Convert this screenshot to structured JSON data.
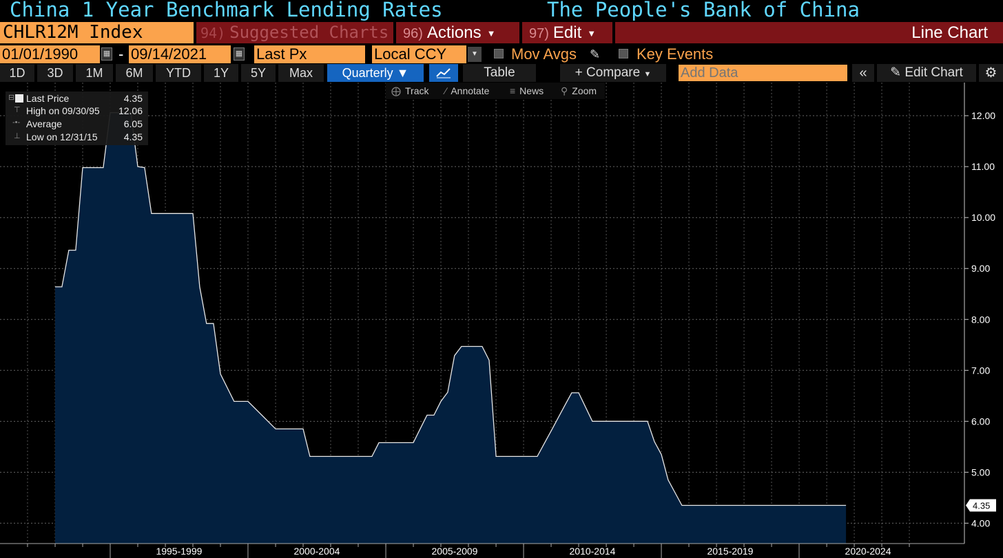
{
  "header": {
    "title_left": "China 1 Year Benchmark Lending Rates",
    "title_right": "The People's Bank of China"
  },
  "toolbar": {
    "ticker": "CHLR12M Index",
    "suggested_num": "94)",
    "suggested_label": "Suggested Charts",
    "actions_num": "96)",
    "actions_label": "Actions",
    "edit_num": "97)",
    "edit_label": "Edit",
    "chart_type": "Line Chart"
  },
  "controls": {
    "start_date": "01/01/1990",
    "dash": "-",
    "end_date": "09/14/2021",
    "field": "Last Px",
    "currency": "Local CCY",
    "mov_avgs": "Mov Avgs",
    "key_events": "Key Events"
  },
  "periods": [
    "1D",
    "3D",
    "1M",
    "6M",
    "YTD",
    "1Y",
    "5Y",
    "Max"
  ],
  "periodicity": "Quarterly",
  "table_label": "Table",
  "compare_label": "Compare",
  "add_data_placeholder": "Add Data",
  "edit_chart_label": "Edit Chart",
  "tools": [
    "Track",
    "Annotate",
    "News",
    "Zoom"
  ],
  "legend": {
    "last_label": "Last Price",
    "last_value": "4.35",
    "high_label": "High on 09/30/95",
    "high_value": "12.06",
    "avg_label": "Average",
    "avg_value": "6.05",
    "low_label": "Low on 12/31/15",
    "low_value": "4.35"
  },
  "colors": {
    "accent_orange": "#fba34c",
    "menu_red": "#7d1418",
    "title_cyan": "#5fd7ff",
    "area_fill": "#03203f",
    "selected_blue": "#1565c0"
  },
  "chart_data": {
    "type": "area",
    "ylim": [
      3.6,
      12.65
    ],
    "yticks": [
      4,
      5,
      6,
      7,
      8,
      9,
      10,
      11,
      12
    ],
    "ytick_labels": [
      "4.00",
      "5.00",
      "6.00",
      "7.00",
      "8.00",
      "9.00",
      "10.00",
      "11.00",
      "12.00"
    ],
    "last_value_label": "4.35",
    "x_range": [
      "1990-01-01",
      "2024-12-31"
    ],
    "x_groups": [
      {
        "label": "1995-1999",
        "start": "1995-01-01",
        "end": "1999-12-31"
      },
      {
        "label": "2000-2004",
        "start": "2000-01-01",
        "end": "2004-12-31"
      },
      {
        "label": "2005-2009",
        "start": "2005-01-01",
        "end": "2009-12-31"
      },
      {
        "label": "2010-2014",
        "start": "2010-01-01",
        "end": "2014-12-31"
      },
      {
        "label": "2015-2019",
        "start": "2015-01-01",
        "end": "2019-12-31"
      },
      {
        "label": "2020-2024",
        "start": "2020-01-01",
        "end": "2024-12-31"
      }
    ],
    "series": [
      {
        "x": [
          "1993-01-01",
          "1993-04-01",
          "1993-07-01",
          "1993-10-01",
          "1994-01-01",
          "1994-04-01",
          "1994-07-01",
          "1994-10-01",
          "1995-01-01",
          "1995-04-01",
          "1995-07-01",
          "1995-10-01",
          "1996-01-01",
          "1996-04-01",
          "1996-07-01",
          "1996-10-01",
          "1997-01-01",
          "1997-04-01",
          "1997-07-01",
          "1997-10-01",
          "1998-01-01",
          "1998-04-01",
          "1998-07-01",
          "1998-10-01",
          "1999-01-01",
          "1999-07-01",
          "2000-01-01",
          "2001-01-01",
          "2002-01-01",
          "2002-04-01",
          "2003-01-01",
          "2004-01-01",
          "2004-07-01",
          "2004-10-01",
          "2005-01-01",
          "2006-01-01",
          "2006-04-01",
          "2006-07-01",
          "2006-10-01",
          "2007-01-01",
          "2007-04-01",
          "2007-07-01",
          "2007-10-01",
          "2008-01-01",
          "2008-07-01",
          "2008-10-01",
          "2009-01-01",
          "2010-01-01",
          "2010-07-01",
          "2010-10-01",
          "2011-01-01",
          "2011-04-01",
          "2011-07-01",
          "2011-10-01",
          "2012-01-01",
          "2012-07-01",
          "2013-01-01",
          "2014-01-01",
          "2014-07-01",
          "2014-10-01",
          "2015-01-01",
          "2015-04-01",
          "2015-07-01",
          "2015-10-01",
          "2016-01-01",
          "2017-01-01",
          "2018-01-01",
          "2019-01-01",
          "2020-01-01",
          "2021-01-01",
          "2021-09-14"
        ],
        "values": [
          8.64,
          8.64,
          9.36,
          9.36,
          10.98,
          10.98,
          10.98,
          10.98,
          12.06,
          12.06,
          12.06,
          12.06,
          11.0,
          10.98,
          10.08,
          10.08,
          10.08,
          10.08,
          10.08,
          10.08,
          10.08,
          8.64,
          7.92,
          7.92,
          6.93,
          6.39,
          6.39,
          5.85,
          5.85,
          5.31,
          5.31,
          5.31,
          5.31,
          5.58,
          5.58,
          5.58,
          5.85,
          6.12,
          6.12,
          6.39,
          6.57,
          7.29,
          7.47,
          7.47,
          7.47,
          7.2,
          5.31,
          5.31,
          5.31,
          5.56,
          5.81,
          6.06,
          6.31,
          6.56,
          6.56,
          6.0,
          6.0,
          6.0,
          6.0,
          5.6,
          5.35,
          4.85,
          4.6,
          4.35,
          4.35,
          4.35,
          4.35,
          4.35,
          4.35,
          4.35,
          4.35
        ]
      }
    ]
  }
}
